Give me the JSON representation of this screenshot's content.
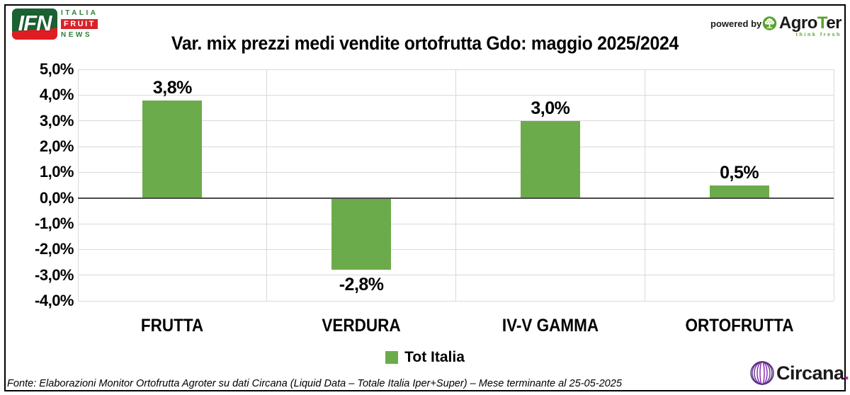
{
  "header": {
    "ifn": {
      "abbr": "IFN",
      "lines": [
        "ITALIA",
        "FRUIT",
        "NEWS"
      ]
    },
    "powered_by": "powered by",
    "agroter": {
      "prefix": "Agro",
      "t": "T",
      "suffix": "er",
      "tagline": "think fresh"
    }
  },
  "title": "Var. mix prezzi medi vendite ortofrutta Gdo: maggio 2025/2024",
  "chart_data": {
    "type": "bar",
    "title": "Var. mix prezzi medi vendite ortofrutta Gdo: maggio 2025/2024",
    "categories": [
      "FRUTTA",
      "VERDURA",
      "IV-V GAMMA",
      "ORTOFRUTTA"
    ],
    "series": [
      {
        "name": "Tot Italia",
        "values": [
          3.8,
          -2.8,
          3.0,
          0.5
        ]
      }
    ],
    "value_labels": [
      "3,8%",
      "-2,8%",
      "3,0%",
      "0,5%"
    ],
    "y_ticks": [
      {
        "value": 5,
        "label": "5,0%"
      },
      {
        "value": 4,
        "label": "4,0%"
      },
      {
        "value": 3,
        "label": "3,0%"
      },
      {
        "value": 2,
        "label": "2,0%"
      },
      {
        "value": 1,
        "label": "1,0%"
      },
      {
        "value": 0,
        "label": "0,0%"
      },
      {
        "value": -1,
        "label": "-1,0%"
      },
      {
        "value": -2,
        "label": "-2,0%"
      },
      {
        "value": -3,
        "label": "-3,0%"
      },
      {
        "value": -4,
        "label": "-4,0%"
      }
    ],
    "ylim": [
      -4,
      5
    ],
    "bar_color": "#6cab4b",
    "gridline_color": "#d9d9d9",
    "zero_line_color": "#4a4a4a",
    "grid": true,
    "legend_position": "bottom"
  },
  "legend": {
    "label": "Tot Italia"
  },
  "footer": {
    "source": "Fonte: Elaborazioni Monitor Ortofrutta Agroter su dati Circana (Liquid Data – Totale Italia Iper+Super) – Mese terminante al 25-05-2025"
  },
  "circana": {
    "name": "Circana",
    "dot": "."
  }
}
